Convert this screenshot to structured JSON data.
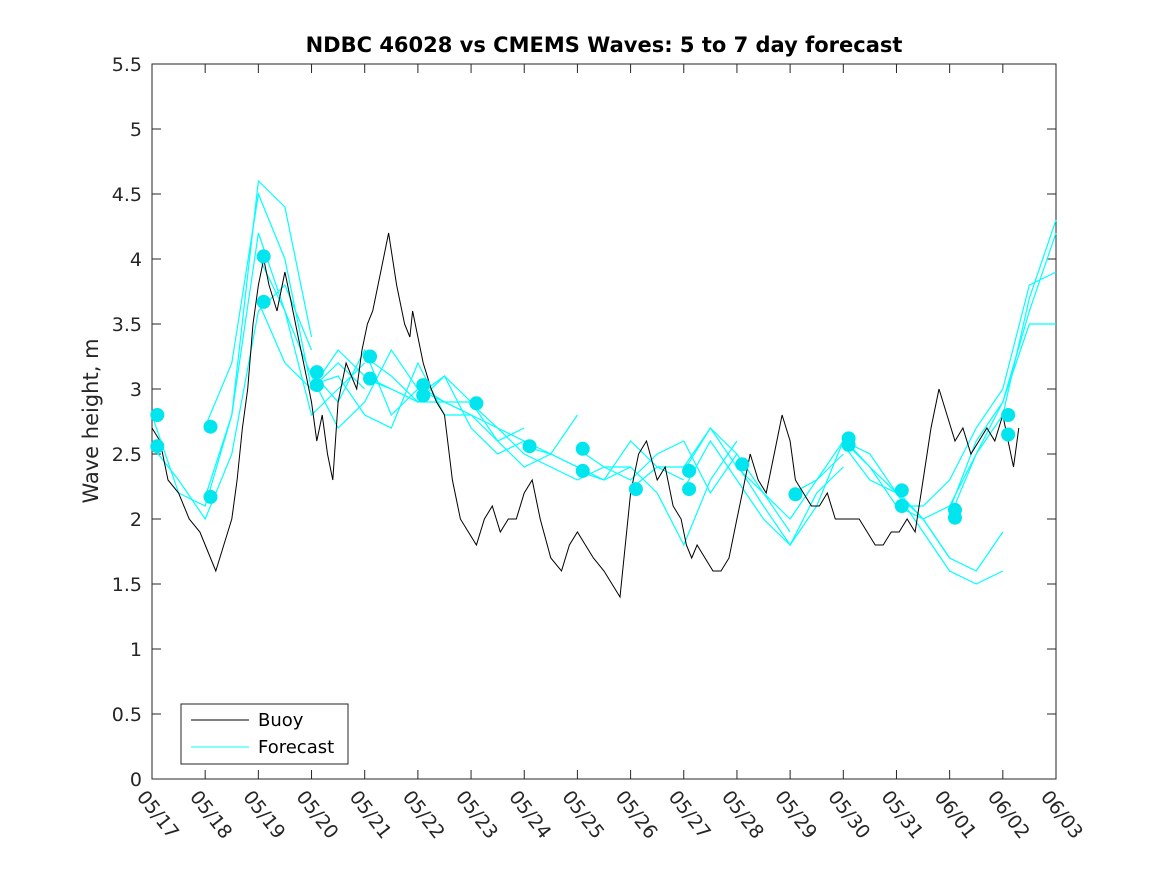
{
  "chart_data": {
    "type": "line",
    "title": "NDBC 46028 vs CMEMS Waves: 5 to 7 day forecast",
    "xlabel": "",
    "ylabel": "Wave height, m",
    "x_tick_labels": [
      "05/17",
      "05/18",
      "05/19",
      "05/20",
      "05/21",
      "05/22",
      "05/23",
      "05/24",
      "05/25",
      "05/26",
      "05/27",
      "05/28",
      "05/29",
      "05/30",
      "05/31",
      "06/01",
      "06/02",
      "06/03"
    ],
    "x_axis_note": "x values in days since 05/17 00:00",
    "xlim": [
      0,
      17
    ],
    "ylim": [
      0,
      5.5
    ],
    "y_ticks": [
      0,
      0.5,
      1,
      1.5,
      2,
      2.5,
      3,
      3.5,
      4,
      4.5,
      5,
      5.5
    ],
    "y_tick_labels": [
      "0",
      "0.5",
      "1",
      "1.5",
      "2",
      "2.5",
      "3",
      "3.5",
      "4",
      "4.5",
      "5",
      "5.5"
    ],
    "grid": false,
    "legend": {
      "location": "bottom-left",
      "entries": [
        "Buoy",
        "Forecast"
      ]
    },
    "colors": {
      "buoy": "#000000",
      "forecast": "#00ffff",
      "marker": "#00e5ee"
    },
    "series": [
      {
        "name": "Buoy",
        "x": [
          0.0,
          0.15,
          0.3,
          0.5,
          0.7,
          0.9,
          1.0,
          1.1,
          1.2,
          1.35,
          1.5,
          1.6,
          1.7,
          1.8,
          1.9,
          2.0,
          2.1,
          2.2,
          2.35,
          2.5,
          2.6,
          2.75,
          2.85,
          3.0,
          3.1,
          3.2,
          3.3,
          3.4,
          3.5,
          3.65,
          3.75,
          3.85,
          3.95,
          4.05,
          4.15,
          4.3,
          4.45,
          4.6,
          4.75,
          4.85,
          4.9,
          5.0,
          5.1,
          5.25,
          5.35,
          5.5,
          5.65,
          5.8,
          5.95,
          6.1,
          6.25,
          6.4,
          6.55,
          6.7,
          6.85,
          7.0,
          7.15,
          7.3,
          7.5,
          7.7,
          7.85,
          8.0,
          8.15,
          8.3,
          8.5,
          8.65,
          8.8,
          9.0,
          9.15,
          9.3,
          9.5,
          9.65,
          9.8,
          9.95,
          10.05,
          10.15,
          10.25,
          10.4,
          10.55,
          10.7,
          10.85,
          11.0,
          11.1,
          11.25,
          11.4,
          11.55,
          11.7,
          11.85,
          12.0,
          12.1,
          12.25,
          12.4,
          12.55,
          12.7,
          12.85,
          13.0,
          13.15,
          13.3,
          13.45,
          13.6,
          13.75,
          13.9,
          14.05,
          14.2,
          14.35,
          14.5,
          14.65,
          14.8,
          14.95,
          15.1,
          15.25,
          15.4,
          15.55,
          15.7,
          15.85,
          16.0,
          16.1,
          16.2,
          16.3
        ],
        "y": [
          2.7,
          2.6,
          2.3,
          2.2,
          2.0,
          1.9,
          1.8,
          1.7,
          1.6,
          1.8,
          2.0,
          2.3,
          2.7,
          3.0,
          3.5,
          3.8,
          4.0,
          3.8,
          3.6,
          3.9,
          3.7,
          3.4,
          3.2,
          2.9,
          2.6,
          2.8,
          2.5,
          2.3,
          2.9,
          3.2,
          3.1,
          3.0,
          3.3,
          3.5,
          3.6,
          3.9,
          4.2,
          3.8,
          3.5,
          3.4,
          3.6,
          3.4,
          3.2,
          3.0,
          2.9,
          2.8,
          2.3,
          2.0,
          1.9,
          1.8,
          2.0,
          2.1,
          1.9,
          2.0,
          2.0,
          2.2,
          2.3,
          2.0,
          1.7,
          1.6,
          1.8,
          1.9,
          1.8,
          1.7,
          1.6,
          1.5,
          1.4,
          2.2,
          2.5,
          2.6,
          2.3,
          2.4,
          2.1,
          2.0,
          1.8,
          1.7,
          1.8,
          1.7,
          1.6,
          1.6,
          1.7,
          2.0,
          2.2,
          2.5,
          2.3,
          2.2,
          2.5,
          2.8,
          2.6,
          2.3,
          2.2,
          2.1,
          2.1,
          2.2,
          2.0,
          2.0,
          2.0,
          2.0,
          1.9,
          1.8,
          1.8,
          1.9,
          1.9,
          2.0,
          1.9,
          2.3,
          2.7,
          3.0,
          2.8,
          2.6,
          2.7,
          2.5,
          2.6,
          2.7,
          2.6,
          2.8,
          2.6,
          2.4,
          2.7
        ]
      },
      {
        "name": "Forecast",
        "segments": [
          {
            "x": [
              0.0,
              0.5,
              1.0,
              1.5,
              2.0,
              2.5,
              3.0
            ],
            "y": [
              2.56,
              2.3,
              2.0,
              2.5,
              3.6,
              3.8,
              3.3
            ]
          },
          {
            "x": [
              0.0,
              0.5,
              1.0,
              1.5,
              2.0,
              2.5,
              3.0
            ],
            "y": [
              2.8,
              2.2,
              2.1,
              2.8,
              4.6,
              4.4,
              3.4
            ]
          },
          {
            "x": [
              1.0,
              1.5,
              2.0,
              2.5,
              3.0,
              3.5,
              4.0
            ],
            "y": [
              2.71,
              3.2,
              4.5,
              4.0,
              3.0,
              3.2,
              3.0
            ]
          },
          {
            "x": [
              1.0,
              1.5,
              2.0,
              2.5,
              3.0,
              3.5,
              4.0
            ],
            "y": [
              2.17,
              2.8,
              4.2,
              3.6,
              2.8,
              3.0,
              3.2
            ]
          },
          {
            "x": [
              2.0,
              2.5,
              3.0,
              3.5,
              4.0,
              4.5,
              5.0
            ],
            "y": [
              4.02,
              3.6,
              3.1,
              2.7,
              2.9,
              3.3,
              3.0
            ]
          },
          {
            "x": [
              2.0,
              2.5,
              3.0,
              3.5,
              4.0,
              4.5,
              5.0
            ],
            "y": [
              3.67,
              3.2,
              3.0,
              3.3,
              3.1,
              3.0,
              2.9
            ]
          },
          {
            "x": [
              3.0,
              3.5,
              4.0,
              4.5,
              5.0,
              5.5,
              6.0
            ],
            "y": [
              3.13,
              2.9,
              3.3,
              2.8,
              3.0,
              2.9,
              2.9
            ]
          },
          {
            "x": [
              3.0,
              3.5,
              4.0,
              4.5,
              5.0,
              5.5,
              6.0
            ],
            "y": [
              3.03,
              3.1,
              2.8,
              2.7,
              3.2,
              2.8,
              2.8
            ]
          },
          {
            "x": [
              4.0,
              4.5,
              5.0,
              5.5,
              6.0,
              6.5,
              7.0
            ],
            "y": [
              3.25,
              3.1,
              2.9,
              3.1,
              2.7,
              2.5,
              2.6
            ]
          },
          {
            "x": [
              4.0,
              4.5,
              5.0,
              5.5,
              6.0,
              6.5,
              7.0
            ],
            "y": [
              3.08,
              3.0,
              2.9,
              2.9,
              2.8,
              2.6,
              2.7
            ]
          },
          {
            "x": [
              5.0,
              5.5,
              6.0,
              6.5,
              7.0,
              7.5,
              8.0
            ],
            "y": [
              3.03,
              2.9,
              2.8,
              2.7,
              2.6,
              2.5,
              2.8
            ]
          },
          {
            "x": [
              5.0,
              5.5,
              6.0,
              6.5,
              7.0,
              7.5,
              8.0
            ],
            "y": [
              2.95,
              3.1,
              2.9,
              2.6,
              2.4,
              2.5,
              2.4
            ]
          },
          {
            "x": [
              6.0,
              6.5,
              7.0,
              7.5,
              8.0,
              8.5,
              9.0
            ],
            "y": [
              2.89,
              2.7,
              2.5,
              2.4,
              2.3,
              2.4,
              2.4
            ]
          },
          {
            "x": [
              7.0,
              7.5,
              8.0,
              8.5,
              9.0,
              9.5,
              10.0
            ],
            "y": [
              2.56,
              2.5,
              2.4,
              2.3,
              2.6,
              2.4,
              2.3
            ]
          },
          {
            "x": [
              8.0,
              8.5,
              9.0,
              9.5,
              10.0,
              10.5,
              11.0
            ],
            "y": [
              2.54,
              2.4,
              2.3,
              2.5,
              2.6,
              2.2,
              2.5
            ]
          },
          {
            "x": [
              8.0,
              8.5,
              9.0,
              9.5,
              10.0,
              10.5,
              11.0
            ],
            "y": [
              2.37,
              2.3,
              2.4,
              2.2,
              1.8,
              2.3,
              2.6
            ]
          },
          {
            "x": [
              9.0,
              9.5,
              10.0,
              10.5,
              11.0,
              11.5,
              12.0
            ],
            "y": [
              2.23,
              2.4,
              2.4,
              2.7,
              2.5,
              2.2,
              1.9
            ]
          },
          {
            "x": [
              10.0,
              10.5,
              11.0,
              11.5,
              12.0,
              12.5,
              13.0
            ],
            "y": [
              2.37,
              2.7,
              2.4,
              2.2,
              2.0,
              2.3,
              2.5
            ]
          },
          {
            "x": [
              10.0,
              10.5,
              11.0,
              11.5,
              12.0,
              12.5,
              13.0
            ],
            "y": [
              2.23,
              2.6,
              2.3,
              2.0,
              1.8,
              2.2,
              2.4
            ]
          },
          {
            "x": [
              11.0,
              11.5,
              12.0,
              12.5,
              13.0,
              13.5,
              14.0
            ],
            "y": [
              2.42,
              2.1,
              1.8,
              2.1,
              2.6,
              2.5,
              2.2
            ]
          },
          {
            "x": [
              12.0,
              12.5,
              13.0,
              13.5,
              14.0,
              14.5,
              15.0
            ],
            "y": [
              2.19,
              2.3,
              2.6,
              2.4,
              2.2,
              2.0,
              1.7
            ]
          },
          {
            "x": [
              13.0,
              13.5,
              14.0,
              14.5,
              15.0,
              15.5,
              16.0
            ],
            "y": [
              2.62,
              2.4,
              2.1,
              2.0,
              1.7,
              1.6,
              1.9
            ]
          },
          {
            "x": [
              13.0,
              13.5,
              14.0,
              14.5,
              15.0,
              15.5,
              16.0
            ],
            "y": [
              2.57,
              2.3,
              2.2,
              1.9,
              1.6,
              1.5,
              1.6
            ]
          },
          {
            "x": [
              14.0,
              14.5,
              15.0,
              15.5,
              16.0,
              16.5,
              17.0
            ],
            "y": [
              2.22,
              2.0,
              2.1,
              2.5,
              2.9,
              3.6,
              4.2
            ]
          },
          {
            "x": [
              14.0,
              14.5,
              15.0,
              15.5,
              16.0,
              16.5,
              17.0
            ],
            "y": [
              2.1,
              2.1,
              2.3,
              2.7,
              3.0,
              3.8,
              3.9
            ]
          },
          {
            "x": [
              15.0,
              15.5,
              16.0,
              16.5,
              17.0
            ],
            "y": [
              2.07,
              2.6,
              2.9,
              3.5,
              3.5
            ]
          },
          {
            "x": [
              15.0,
              15.5,
              16.0,
              16.5,
              17.0
            ],
            "y": [
              2.01,
              2.5,
              2.8,
              3.7,
              4.3
            ]
          }
        ],
        "markers": {
          "x": [
            0.1,
            0.1,
            1.1,
            1.1,
            2.1,
            2.1,
            3.1,
            3.1,
            4.1,
            4.1,
            5.1,
            5.1,
            6.1,
            7.1,
            8.1,
            8.1,
            9.1,
            10.1,
            10.1,
            11.1,
            12.1,
            13.1,
            13.1,
            14.1,
            14.1,
            15.1,
            15.1,
            16.1,
            16.1
          ],
          "y": [
            2.56,
            2.8,
            2.71,
            2.17,
            4.02,
            3.67,
            3.13,
            3.03,
            3.25,
            3.08,
            3.03,
            2.95,
            2.89,
            2.56,
            2.54,
            2.37,
            2.23,
            2.37,
            2.23,
            2.42,
            2.19,
            2.62,
            2.57,
            2.22,
            2.1,
            2.07,
            2.01,
            2.8,
            2.65
          ]
        }
      }
    ]
  }
}
